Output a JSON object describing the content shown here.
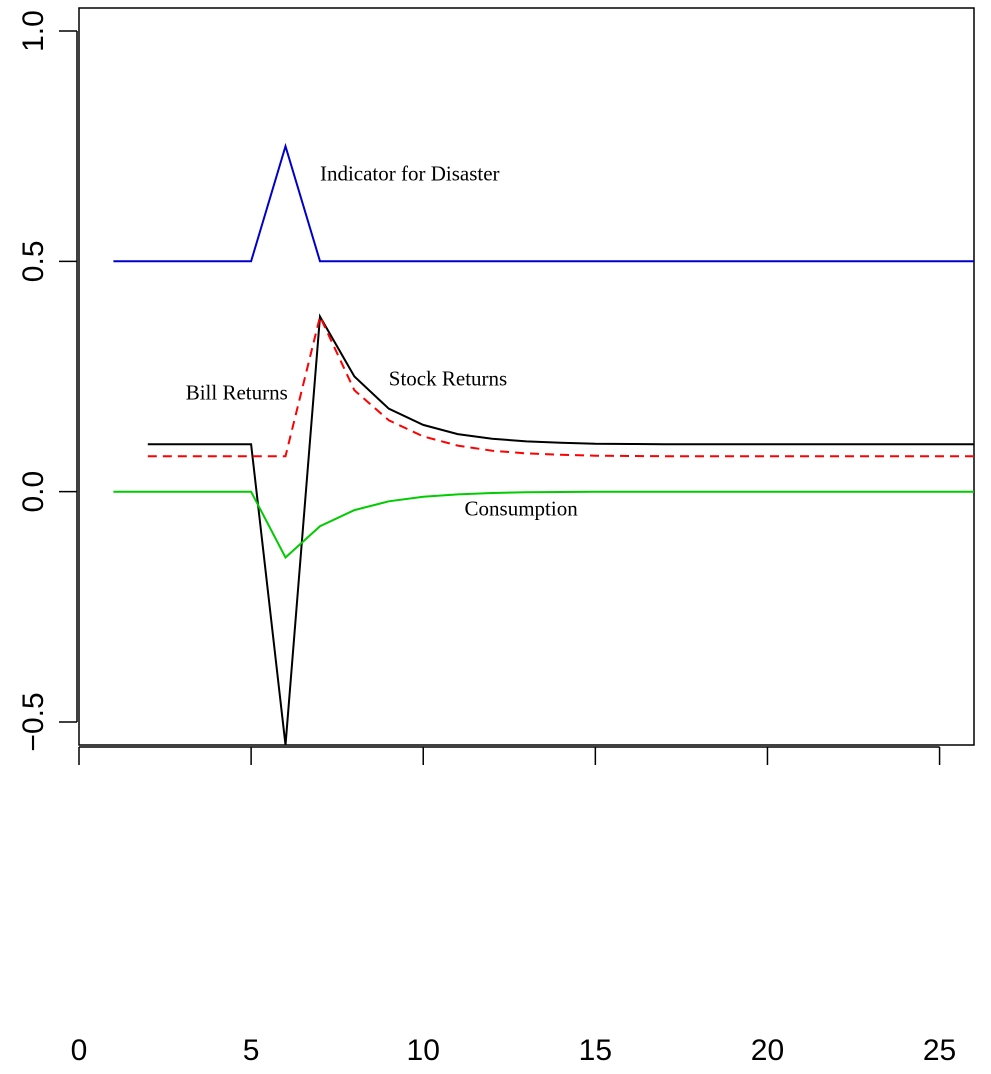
{
  "chart_data": {
    "type": "line",
    "title": "",
    "xlabel": "",
    "ylabel": "",
    "xlim": [
      0,
      26
    ],
    "ylim": [
      -0.55,
      1.05
    ],
    "grid": false,
    "x_ticks": [
      0,
      5,
      10,
      15,
      20,
      25
    ],
    "x_tick_labels": [
      "0",
      "5",
      "10",
      "15",
      "20",
      "25"
    ],
    "y_ticks": [
      -0.5,
      0.0,
      0.5,
      1.0
    ],
    "y_tick_labels": [
      "−0.5",
      "0.0",
      "0.5",
      "1.0"
    ],
    "series": [
      {
        "id": "disaster",
        "color": "#0000cc",
        "dash": "solid",
        "x": [
          1,
          2,
          3,
          4,
          5,
          6,
          7,
          8,
          9,
          10,
          11,
          12,
          13,
          14,
          15,
          16,
          17,
          18,
          19,
          20,
          21,
          22,
          23,
          24,
          25,
          26
        ],
        "y": [
          0.5,
          0.5,
          0.5,
          0.5,
          0.5,
          0.75,
          0.5,
          0.5,
          0.5,
          0.5,
          0.5,
          0.5,
          0.5,
          0.5,
          0.5,
          0.5,
          0.5,
          0.5,
          0.5,
          0.5,
          0.5,
          0.5,
          0.5,
          0.5,
          0.5,
          0.5
        ]
      },
      {
        "id": "stock",
        "color": "#000000",
        "dash": "solid",
        "x": [
          2,
          3,
          4,
          5,
          6,
          7,
          8,
          9,
          10,
          11,
          12,
          13,
          14,
          15,
          16,
          17,
          18,
          19,
          20,
          21,
          22,
          23,
          24,
          25,
          26
        ],
        "y": [
          0.103,
          0.103,
          0.103,
          0.103,
          -0.55,
          0.38,
          0.25,
          0.18,
          0.145,
          0.125,
          0.115,
          0.109,
          0.106,
          0.104,
          0.1035,
          0.103,
          0.103,
          0.103,
          0.103,
          0.103,
          0.103,
          0.103,
          0.103,
          0.103,
          0.103
        ]
      },
      {
        "id": "bill",
        "color": "#ff0000",
        "dash": "dashed",
        "x": [
          2,
          3,
          4,
          5,
          6,
          7,
          8,
          9,
          10,
          11,
          12,
          13,
          14,
          15,
          16,
          17,
          18,
          19,
          20,
          21,
          22,
          23,
          24,
          25,
          26
        ],
        "y": [
          0.077,
          0.077,
          0.077,
          0.077,
          0.077,
          0.38,
          0.22,
          0.155,
          0.12,
          0.1,
          0.089,
          0.083,
          0.08,
          0.078,
          0.0775,
          0.077,
          0.077,
          0.077,
          0.077,
          0.077,
          0.077,
          0.077,
          0.077,
          0.077,
          0.077
        ]
      },
      {
        "id": "consumption",
        "color": "#00cc00",
        "dash": "solid",
        "x": [
          1,
          2,
          3,
          4,
          5,
          6,
          7,
          8,
          9,
          10,
          11,
          12,
          13,
          14,
          15,
          16,
          17,
          18,
          19,
          20,
          21,
          22,
          23,
          24,
          25,
          26
        ],
        "y": [
          0,
          0,
          0,
          0,
          0,
          -0.143,
          -0.075,
          -0.04,
          -0.021,
          -0.011,
          -0.006,
          -0.003,
          -0.0015,
          -0.0008,
          -0.0004,
          0,
          0,
          0,
          0,
          0,
          0,
          0,
          0,
          0,
          0,
          0
        ]
      }
    ],
    "annotations": [
      {
        "id": "disaster",
        "text": "Indicator for Disaster",
        "x": 7.0,
        "y": 0.675
      },
      {
        "id": "stock",
        "text": "Stock Returns",
        "x": 9.0,
        "y": 0.23
      },
      {
        "id": "bill",
        "text": "Bill Returns",
        "x": 3.1,
        "y": 0.2
      },
      {
        "id": "consumption",
        "text": "Consumption",
        "x": 11.2,
        "y": -0.052
      }
    ]
  }
}
